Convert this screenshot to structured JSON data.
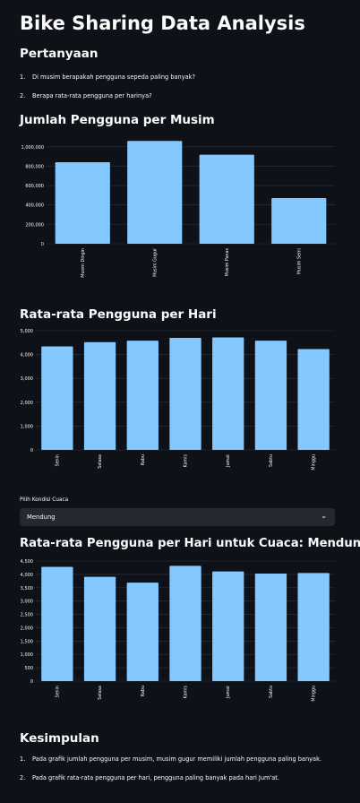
{
  "title": "Bike Sharing Data Analysis",
  "questions_section": {
    "heading": "Pertanyaan",
    "items": [
      "Di musim berapakah pengguna sepeda paling banyak?",
      "Berapa rata-rata pengguna per harinya?"
    ]
  },
  "weather_filter": {
    "label": "Pilih Kondisi Cuaca",
    "selected": "Mendung"
  },
  "conclusion_section": {
    "heading": "Kesimpulan",
    "items": [
      "Pada grafik jumlah pengguna per musim, musim gugur memiliki jumlah pengguna paling banyak.",
      "Pada grafik rata-rata pengguna per hari, pengguna paling banyak pada hari Jum'at."
    ]
  },
  "colors": {
    "bar": "#83c9ff",
    "background": "#0e1117",
    "grid": "#31333f"
  },
  "chart_data": [
    {
      "type": "bar",
      "title": "Jumlah Pengguna per Musim",
      "categories": [
        "Musim Dingin",
        "Musim Gugur",
        "Musim Panas",
        "Musim Semi"
      ],
      "values": [
        841600,
        1061100,
        918600,
        471300
      ],
      "yticks": [
        0,
        200000,
        400000,
        600000,
        800000,
        1000000
      ],
      "ytick_labels": [
        "0",
        "200,000",
        "400,000",
        "600,000",
        "800,000",
        "1,000,000"
      ],
      "ylim": [
        0,
        1100000
      ],
      "grid": true
    },
    {
      "type": "bar",
      "title": "Rata-rata Pengguna per Hari",
      "categories": [
        "Senin",
        "Selasa",
        "Rabu",
        "Kamis",
        "Jumat",
        "Sabtu",
        "Minggu"
      ],
      "values": [
        4340,
        4520,
        4580,
        4700,
        4720,
        4580,
        4230
      ],
      "yticks": [
        0,
        1000,
        2000,
        3000,
        4000,
        5000
      ],
      "ytick_labels": [
        "0",
        "1,000",
        "2,000",
        "3,000",
        "4,000",
        "5,000"
      ],
      "ylim": [
        0,
        5000
      ],
      "grid": true
    },
    {
      "type": "bar",
      "title": "Rata-rata Pengguna per Hari untuk Cuaca: Mendung",
      "categories": [
        "Senin",
        "Selasa",
        "Rabu",
        "Kamis",
        "Jumat",
        "Sabtu",
        "Minggu"
      ],
      "values": [
        4280,
        3910,
        3690,
        4320,
        4110,
        4030,
        4050
      ],
      "yticks": [
        0,
        500,
        1000,
        1500,
        2000,
        2500,
        3000,
        3500,
        4000,
        4500
      ],
      "ytick_labels": [
        "0",
        "500",
        "1,000",
        "1,500",
        "2,000",
        "2,500",
        "3,000",
        "3,500",
        "4,000",
        "4,500"
      ],
      "ylim": [
        0,
        4500
      ],
      "grid": true
    }
  ]
}
